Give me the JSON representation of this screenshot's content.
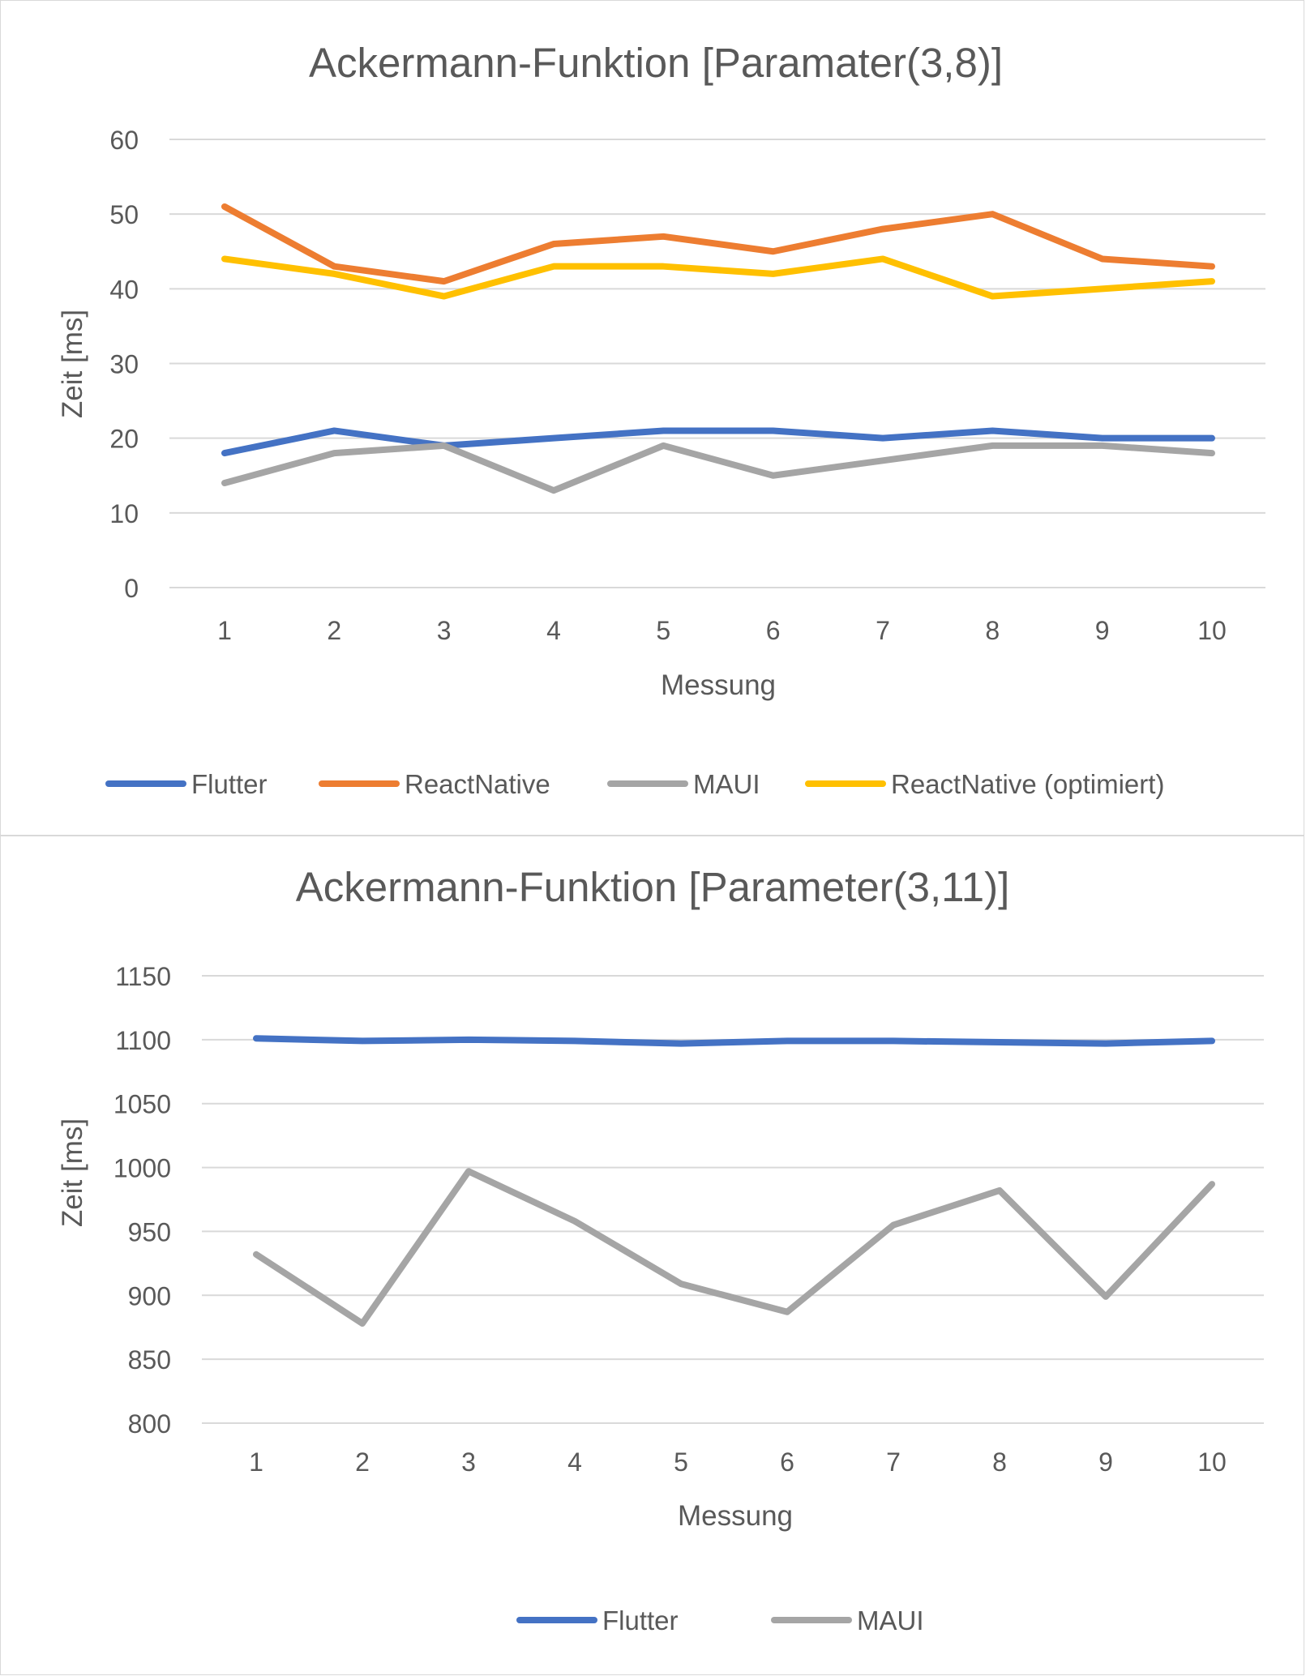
{
  "charts": [
    {
      "chart_data": {
        "type": "line",
        "title": "Ackermann-Funktion [Paramater(3,8)]",
        "xlabel": "Messung",
        "ylabel": "Zeit [ms]",
        "categories": [
          "1",
          "2",
          "3",
          "4",
          "5",
          "6",
          "7",
          "8",
          "9",
          "10"
        ],
        "ylim": [
          0,
          60
        ],
        "yticks": [
          "0",
          "10",
          "20",
          "30",
          "40",
          "50",
          "60"
        ],
        "grid": true,
        "legend_position": "bottom",
        "series": [
          {
            "name": "Flutter",
            "color": "#4472C4",
            "values": [
              18,
              21,
              19,
              20,
              21,
              21,
              20,
              21,
              20,
              20
            ]
          },
          {
            "name": "ReactNative",
            "color": "#ED7D31",
            "values": [
              51,
              43,
              41,
              46,
              47,
              45,
              48,
              50,
              44,
              43
            ]
          },
          {
            "name": "MAUI",
            "color": "#A5A5A5",
            "values": [
              14,
              18,
              19,
              13,
              19,
              15,
              17,
              19,
              19,
              18
            ]
          },
          {
            "name": "ReactNative (optimiert)",
            "color": "#FFC000",
            "values": [
              44,
              42,
              39,
              43,
              43,
              42,
              44,
              39,
              40,
              41
            ]
          }
        ]
      }
    },
    {
      "chart_data": {
        "type": "line",
        "title": "Ackermann-Funktion [Parameter(3,11)]",
        "xlabel": "Messung",
        "ylabel": "Zeit [ms]",
        "categories": [
          "1",
          "2",
          "3",
          "4",
          "5",
          "6",
          "7",
          "8",
          "9",
          "10"
        ],
        "ylim": [
          800,
          1150
        ],
        "yticks": [
          "800",
          "850",
          "900",
          "950",
          "1000",
          "1050",
          "1100",
          "1150"
        ],
        "grid": true,
        "legend_position": "bottom",
        "series": [
          {
            "name": "Flutter",
            "color": "#4472C4",
            "values": [
              1101,
              1099,
              1100,
              1099,
              1097,
              1099,
              1099,
              1098,
              1097,
              1099
            ]
          },
          {
            "name": "MAUI",
            "color": "#A5A5A5",
            "values": [
              932,
              878,
              997,
              958,
              909,
              887,
              955,
              982,
              899,
              987
            ]
          }
        ]
      }
    }
  ]
}
